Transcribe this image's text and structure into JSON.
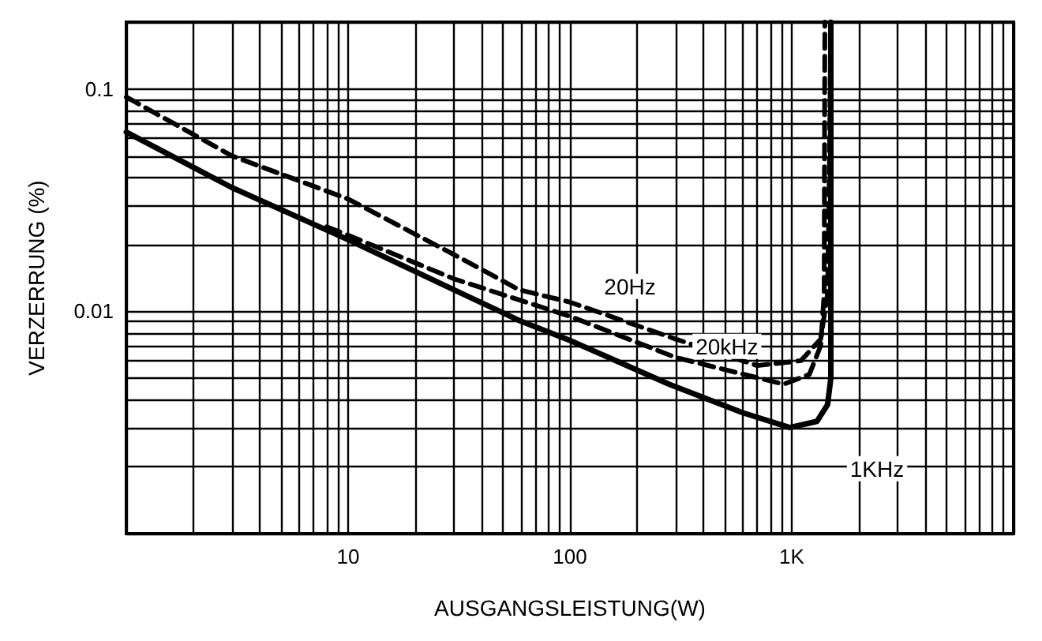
{
  "chart_data": {
    "type": "line",
    "xlabel": "AUSGANGSLEISTUNG(W)",
    "ylabel": "VERZERRUNG (%)",
    "log": "xy",
    "grid": true,
    "marker": "none",
    "xlim": [
      1,
      10000
    ],
    "ylim": [
      0.001,
      0.2
    ],
    "xticks": [
      {
        "value": 1,
        "label": null
      },
      {
        "value": 2,
        "label": null
      },
      {
        "value": 3,
        "label": null
      },
      {
        "value": 4,
        "label": null
      },
      {
        "value": 5,
        "label": null
      },
      {
        "value": 6,
        "label": null
      },
      {
        "value": 7,
        "label": null
      },
      {
        "value": 8,
        "label": null
      },
      {
        "value": 9,
        "label": null
      },
      10,
      {
        "value": 20,
        "label": null
      },
      {
        "value": 30,
        "label": null
      },
      {
        "value": 40,
        "label": null
      },
      {
        "value": 50,
        "label": null
      },
      {
        "value": 60,
        "label": null
      },
      {
        "value": 70,
        "label": null
      },
      {
        "value": 80,
        "label": null
      },
      {
        "value": 90,
        "label": null
      },
      100,
      {
        "value": 200,
        "label": null
      },
      {
        "value": 300,
        "label": null
      },
      {
        "value": 400,
        "label": null
      },
      {
        "value": 500,
        "label": null
      },
      {
        "value": 600,
        "label": null
      },
      {
        "value": 700,
        "label": null
      },
      {
        "value": 800,
        "label": null
      },
      {
        "value": 900,
        "label": null
      },
      {
        "value": 1000,
        "label": "1K"
      },
      {
        "value": 2000,
        "label": null
      },
      {
        "value": 3000,
        "label": null
      },
      {
        "value": 4000,
        "label": null
      },
      {
        "value": 5000,
        "label": null
      },
      {
        "value": 6000,
        "label": null
      },
      {
        "value": 7000,
        "label": null
      },
      {
        "value": 8000,
        "label": null
      },
      {
        "value": 9000,
        "label": null
      },
      {
        "value": 10000,
        "label": null
      }
    ],
    "yticks": [
      {
        "value": 0.001,
        "label": null
      },
      {
        "value": 0.002,
        "label": null
      },
      {
        "value": 0.003,
        "label": null
      },
      {
        "value": 0.004,
        "label": null
      },
      {
        "value": 0.005,
        "label": null
      },
      {
        "value": 0.006,
        "label": null
      },
      {
        "value": 0.007,
        "label": null
      },
      {
        "value": 0.008,
        "label": null
      },
      {
        "value": 0.009,
        "label": null
      },
      0.01,
      {
        "value": 0.02,
        "label": null
      },
      {
        "value": 0.03,
        "label": null
      },
      {
        "value": 0.04,
        "label": null
      },
      {
        "value": 0.05,
        "label": null
      },
      {
        "value": 0.06,
        "label": null
      },
      {
        "value": 0.07,
        "label": null
      },
      {
        "value": 0.08,
        "label": null
      },
      {
        "value": 0.09,
        "label": null
      },
      0.1,
      {
        "value": 0.2,
        "label": null
      }
    ],
    "series": [
      {
        "color": "#000000",
        "line_style": "dashed",
        "x": [
          1,
          3,
          10,
          30,
          59,
          100,
          300,
          700,
          1100,
          1350,
          1450,
          1480,
          1500
        ],
        "values": [
          0.092,
          0.05,
          0.032,
          0.018,
          0.0125,
          0.011,
          0.0075,
          0.0057,
          0.006,
          0.0075,
          0.012,
          0.05,
          0.2
        ]
      },
      {
        "color": "#000000",
        "line_style": "dashed",
        "x": [
          8,
          10,
          30,
          100,
          300,
          920,
          1200,
          1350,
          1400,
          1410
        ],
        "values": [
          0.024,
          0.022,
          0.014,
          0.0095,
          0.0062,
          0.0047,
          0.0052,
          0.007,
          0.012,
          0.2
        ]
      },
      {
        "color": "#000000",
        "line_style": "solid",
        "x": [
          1,
          3,
          10,
          30,
          59,
          100,
          280,
          600,
          980,
          1300,
          1450,
          1500,
          1500
        ],
        "values": [
          0.064,
          0.036,
          0.021,
          0.0125,
          0.0091,
          0.0074,
          0.0047,
          0.0035,
          0.003,
          0.0032,
          0.0038,
          0.005,
          0.2
        ]
      }
    ],
    "annotations": [
      {
        "text": "20Hz",
        "x": 100,
        "y": 0.011
      },
      {
        "text": "20kHz",
        "x": 920,
        "y": 0.0047
      },
      {
        "text": "1KHz",
        "x": 1300,
        "y": 0.0032
      }
    ]
  }
}
